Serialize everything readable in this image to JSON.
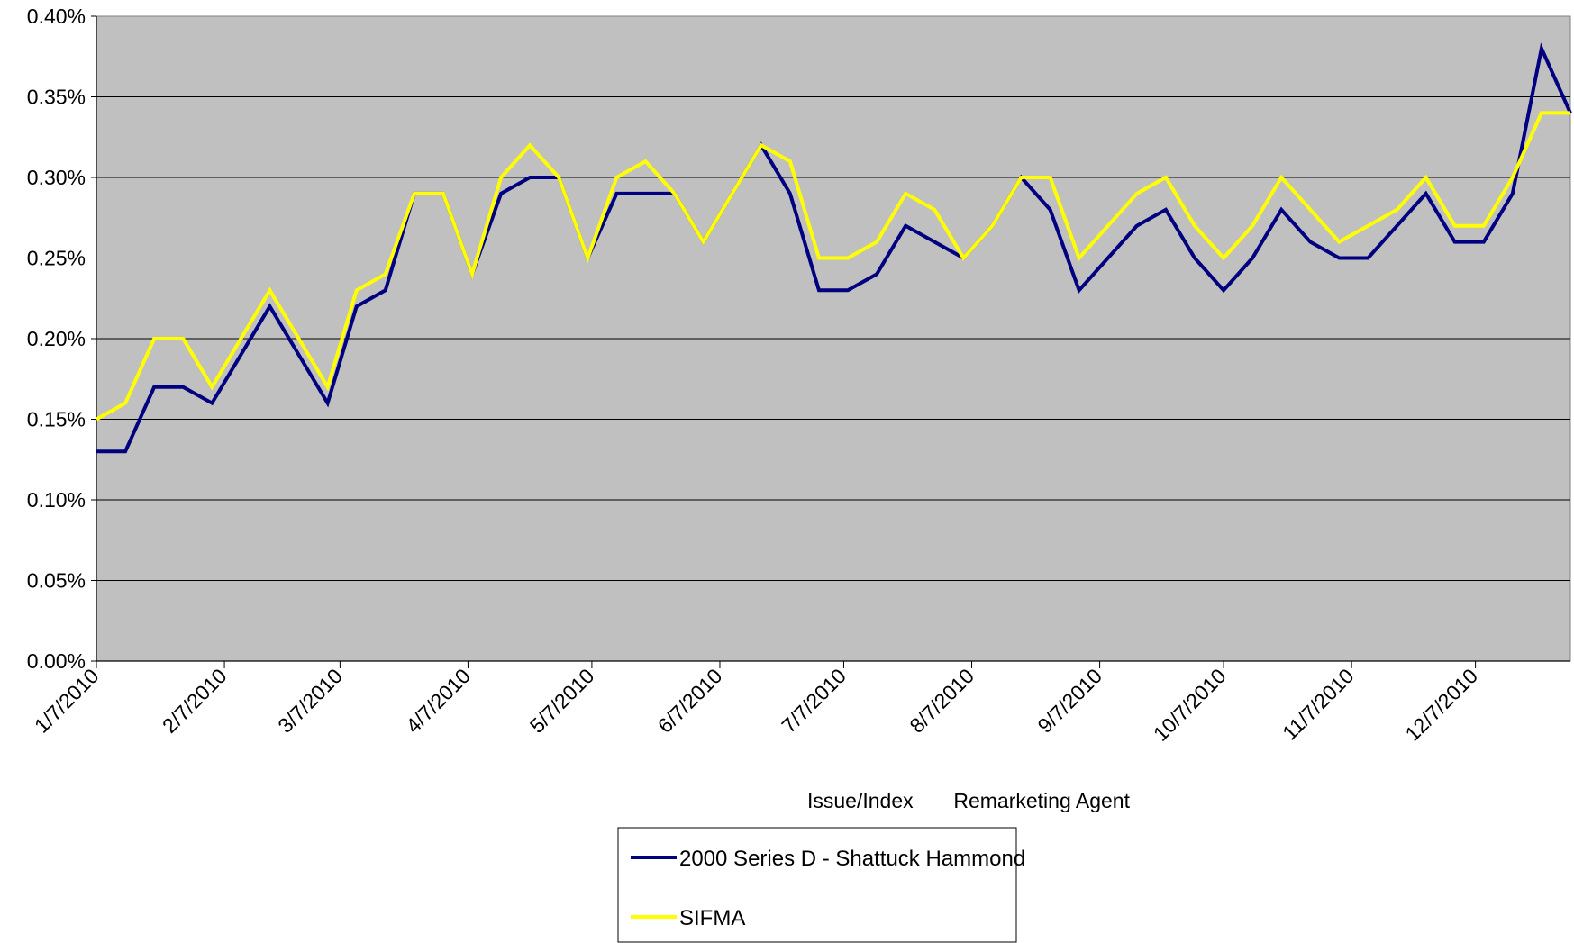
{
  "chart_data": {
    "type": "line",
    "title": "",
    "xlabel": "Issue/Index       Remarketing Agent",
    "ylabel": "",
    "ylim": [
      0,
      0.4
    ],
    "y_ticks": [
      "0.00%",
      "0.05%",
      "0.10%",
      "0.15%",
      "0.20%",
      "0.25%",
      "0.30%",
      "0.35%",
      "0.40%"
    ],
    "x_ticks": [
      "1/7/2010",
      "2/7/2010",
      "3/7/2010",
      "4/7/2010",
      "5/7/2010",
      "6/7/2010",
      "7/7/2010",
      "8/7/2010",
      "9/7/2010",
      "10/7/2010",
      "11/7/2010",
      "12/7/2010"
    ],
    "x_range": [
      "2010-01-07",
      "2010-12-30"
    ],
    "grid": "horizontal",
    "legend_position": "bottom",
    "x": [
      "2010-01-07",
      "2010-01-14",
      "2010-01-21",
      "2010-01-28",
      "2010-02-04",
      "2010-02-11",
      "2010-02-18",
      "2010-02-25",
      "2010-03-04",
      "2010-03-11",
      "2010-03-18",
      "2010-03-25",
      "2010-04-01",
      "2010-04-08",
      "2010-04-15",
      "2010-04-22",
      "2010-04-29",
      "2010-05-06",
      "2010-05-13",
      "2010-05-20",
      "2010-05-27",
      "2010-06-03",
      "2010-06-10",
      "2010-06-17",
      "2010-06-24",
      "2010-07-01",
      "2010-07-08",
      "2010-07-15",
      "2010-07-22",
      "2010-07-29",
      "2010-08-05",
      "2010-08-12",
      "2010-08-19",
      "2010-08-26",
      "2010-09-02",
      "2010-09-09",
      "2010-09-16",
      "2010-09-23",
      "2010-09-30",
      "2010-10-07",
      "2010-10-14",
      "2010-10-21",
      "2010-10-28",
      "2010-11-04",
      "2010-11-11",
      "2010-11-18",
      "2010-11-25",
      "2010-12-02",
      "2010-12-09",
      "2010-12-16",
      "2010-12-23",
      "2010-12-30"
    ],
    "series": [
      {
        "name": "2000 Series D - Shattuck Hammond",
        "color": "#000080",
        "values": [
          0.13,
          0.13,
          0.17,
          0.17,
          0.16,
          0.19,
          0.22,
          0.19,
          0.16,
          0.22,
          0.23,
          0.29,
          0.29,
          0.24,
          0.29,
          0.3,
          0.3,
          0.25,
          0.29,
          0.29,
          0.29,
          0.26,
          0.29,
          0.32,
          0.29,
          0.23,
          0.23,
          0.24,
          0.27,
          0.26,
          0.25,
          0.27,
          0.3,
          0.28,
          0.23,
          0.25,
          0.27,
          0.28,
          0.25,
          0.23,
          0.25,
          0.28,
          0.26,
          0.25,
          0.25,
          0.27,
          0.29,
          0.26,
          0.26,
          0.29,
          0.38,
          0.34
        ]
      },
      {
        "name": "SIFMA",
        "color": "#FFFF00",
        "values": [
          0.15,
          0.16,
          0.2,
          0.2,
          0.17,
          0.2,
          0.23,
          0.2,
          0.17,
          0.23,
          0.24,
          0.29,
          0.29,
          0.24,
          0.3,
          0.32,
          0.3,
          0.25,
          0.3,
          0.31,
          0.29,
          0.26,
          0.29,
          0.32,
          0.31,
          0.25,
          0.25,
          0.26,
          0.29,
          0.28,
          0.25,
          0.27,
          0.3,
          0.3,
          0.25,
          0.27,
          0.29,
          0.3,
          0.27,
          0.25,
          0.27,
          0.3,
          0.28,
          0.26,
          0.27,
          0.28,
          0.3,
          0.27,
          0.27,
          0.3,
          0.34,
          0.34
        ]
      }
    ]
  }
}
